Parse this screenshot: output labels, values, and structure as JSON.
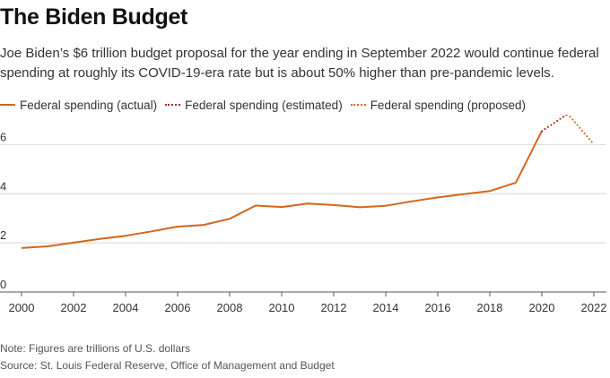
{
  "title": "The Biden Budget",
  "subtitle": "Joe Biden’s $6 trillion budget proposal for the year ending in September 2022 would continue federal spending at roughly its COVID-19-era rate but is about 50% higher than pre-pandemic levels.",
  "note": "Note: Figures are trillions of U.S. dollars",
  "source": "Source: St. Louis Federal Reserve, Office of Management and Budget",
  "colors": {
    "actual": "#d4661d",
    "estimated": "#9b2d14",
    "proposed": "#d4661d",
    "grid": "#d9d9d9",
    "axis": "#555555",
    "text": "#333333"
  },
  "chart_data": {
    "type": "line",
    "xlim": [
      2000,
      2022
    ],
    "ylim": [
      0,
      7
    ],
    "xticks": [
      2000,
      2002,
      2004,
      2006,
      2008,
      2010,
      2012,
      2014,
      2016,
      2018,
      2020,
      2022
    ],
    "yticks": [
      0,
      2,
      4,
      6
    ],
    "grid": true,
    "legend_position": "top-left",
    "series": [
      {
        "name": "Federal spending (actual)",
        "style": "solid",
        "x": [
          2000,
          2001,
          2002,
          2003,
          2004,
          2005,
          2006,
          2007,
          2008,
          2009,
          2010,
          2011,
          2012,
          2013,
          2014,
          2015,
          2016,
          2017,
          2018,
          2019,
          2020
        ],
        "y": [
          1.79,
          1.86,
          2.01,
          2.16,
          2.29,
          2.47,
          2.66,
          2.73,
          2.98,
          3.52,
          3.46,
          3.6,
          3.54,
          3.45,
          3.51,
          3.69,
          3.85,
          3.98,
          4.11,
          4.45,
          6.55
        ]
      },
      {
        "name": "Federal spending (estimated)",
        "style": "dotted",
        "x": [
          2020,
          2021
        ],
        "y": [
          6.55,
          7.25
        ]
      },
      {
        "name": "Federal spending (proposed)",
        "style": "dotted",
        "x": [
          2021,
          2022
        ],
        "y": [
          7.25,
          6.01
        ]
      }
    ]
  }
}
